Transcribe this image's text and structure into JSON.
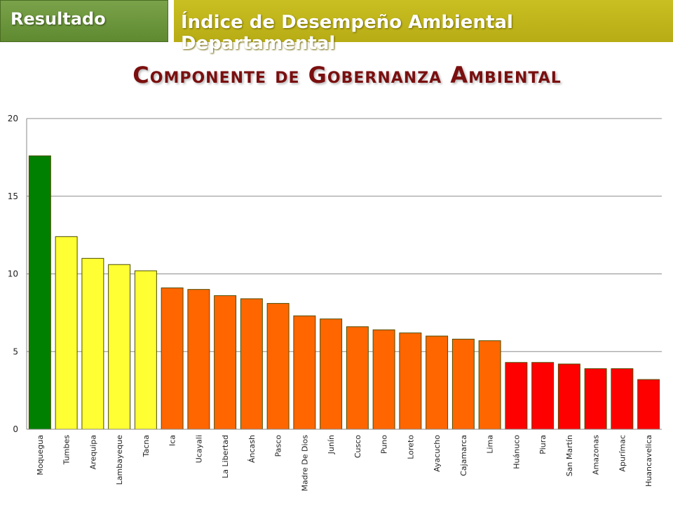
{
  "header": {
    "tag_label": "Resultado",
    "banner_title": "Índice de Desempeño Ambiental Departamental"
  },
  "chart_data": {
    "type": "bar",
    "title": "Componente de Gobernanza Ambiental",
    "xlabel": "",
    "ylabel": "",
    "ylim": [
      0,
      20
    ],
    "yticks": [
      0,
      5,
      10,
      15,
      20
    ],
    "grid": true,
    "categories": [
      "Moquegua",
      "Tumbes",
      "Arequipa",
      "Lambayeque",
      "Tacna",
      "Ica",
      "Ucayali",
      "La Libertad",
      "Áncash",
      "Pasco",
      "Madre De Dios",
      "Junín",
      "Cusco",
      "Puno",
      "Loreto",
      "Ayacucho",
      "Cajamarca",
      "Lima",
      "Huánuco",
      "Piura",
      "San Martín",
      "Amazonas",
      "Apurímac",
      "Huancavelica"
    ],
    "values": [
      17.6,
      12.4,
      11.0,
      10.6,
      10.2,
      9.1,
      9.0,
      8.6,
      8.4,
      8.1,
      7.3,
      7.1,
      6.6,
      6.4,
      6.2,
      6.0,
      5.8,
      5.7,
      4.3,
      4.3,
      4.2,
      3.9,
      3.9,
      3.2
    ],
    "colors": [
      "#008000",
      "#ffff33",
      "#ffff33",
      "#ffff33",
      "#ffff33",
      "#ff6600",
      "#ff6600",
      "#ff6600",
      "#ff6600",
      "#ff6600",
      "#ff6600",
      "#ff6600",
      "#ff6600",
      "#ff6600",
      "#ff6600",
      "#ff6600",
      "#ff6600",
      "#ff6600",
      "#ff0000",
      "#ff0000",
      "#ff0000",
      "#ff0000",
      "#ff0000",
      "#ff0000"
    ]
  }
}
